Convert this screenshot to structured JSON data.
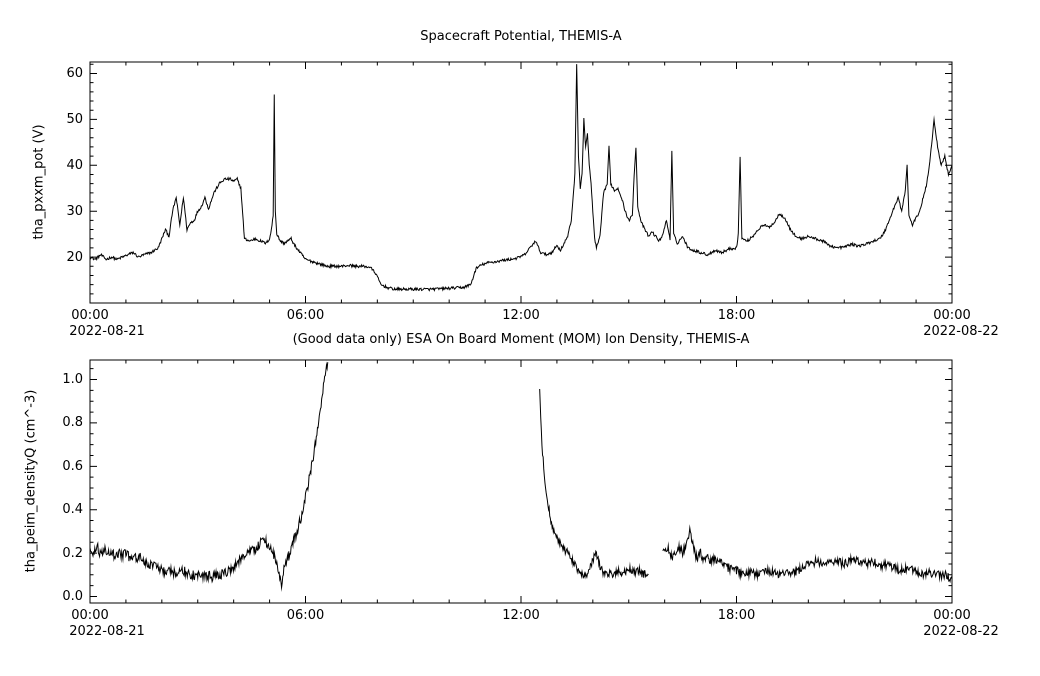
{
  "page": {
    "background": "#ffffff",
    "foreground": "#000000"
  },
  "chart_data": [
    {
      "type": "line",
      "panel": "spacecraft-potential",
      "title": "Spacecraft Potential, THEMIS-A",
      "ylabel": "tha_pxxm_pot (V)",
      "xlabel": "",
      "series_name": "tha_pxxm_pot",
      "line_color": "#000000",
      "x_units": "hours since 2022-08-21 00:00",
      "x_axis": {
        "range_hours": [
          0,
          24
        ],
        "tick_hours": [
          0,
          6,
          12,
          18,
          24
        ],
        "tick_labels": [
          "00:00",
          "06:00",
          "12:00",
          "18:00",
          "00:00"
        ],
        "minor_step_hours": 1,
        "date_left": "2022-08-21",
        "date_right": "2022-08-22"
      },
      "y_axis": {
        "range": [
          10,
          62.5
        ],
        "tick_values": [
          20,
          30,
          40,
          50,
          60
        ],
        "tick_labels": [
          "20",
          "30",
          "40",
          "50",
          "60"
        ],
        "minor_step": 2
      },
      "segments": [
        {
          "noise": 0.3,
          "x": [
            0,
            0.15,
            0.3,
            0.45,
            0.6,
            0.75,
            0.9,
            1.05,
            1.2,
            1.35,
            1.5,
            1.7,
            1.9,
            2,
            2.1,
            2.2,
            2.3,
            2.4,
            2.5,
            2.6,
            2.7,
            2.8,
            2.9,
            3,
            3.1,
            3.2,
            3.3,
            3.45,
            3.6,
            3.75,
            3.9,
            4,
            4.1,
            4.2,
            4.3,
            4.45,
            4.6,
            4.75,
            4.9,
            5,
            5.05,
            5.1,
            5.13,
            5.16,
            5.2,
            5.3,
            5.4,
            5.5,
            5.6,
            5.7,
            5.8,
            5.9,
            6,
            6.2,
            6.4,
            6.6,
            6.8,
            7,
            7.2,
            7.4,
            7.6,
            7.8,
            7.95,
            8.1,
            8.3,
            8.5,
            9,
            9.5,
            10,
            10.4,
            10.6,
            10.75,
            10.9,
            11.1,
            11.3,
            11.5,
            11.7,
            11.9,
            12.1,
            12.25,
            12.4,
            12.55,
            12.7,
            12.85,
            13,
            13.1,
            13.2,
            13.3,
            13.4,
            13.45,
            13.5,
            13.55,
            13.6,
            13.65,
            13.7,
            13.75,
            13.8,
            13.85,
            13.9,
            13.95,
            14,
            14.05,
            14.1,
            14.2,
            14.3,
            14.4,
            14.45,
            14.5,
            14.6,
            14.7,
            14.8,
            14.9,
            15,
            15.1,
            15.15,
            15.2,
            15.25,
            15.35,
            15.45,
            15.55,
            15.65,
            15.75,
            15.85,
            15.95,
            16.05,
            16.15,
            16.2,
            16.25,
            16.35,
            16.5,
            16.65,
            16.8,
            17,
            17.2,
            17.4,
            17.6,
            17.8,
            18,
            18.05,
            18.1,
            18.15,
            18.3,
            18.45,
            18.6,
            18.75,
            18.9,
            19.05,
            19.2,
            19.35,
            19.5,
            19.65,
            19.8,
            20,
            20.2,
            20.4,
            20.6,
            20.8,
            21,
            21.2,
            21.4,
            21.6,
            21.8,
            22,
            22.15,
            22.3,
            22.4,
            22.5,
            22.6,
            22.7,
            22.75,
            22.8,
            22.9,
            23,
            23.1,
            23.2,
            23.3,
            23.4,
            23.5,
            23.6,
            23.7,
            23.8,
            23.9,
            24
          ],
          "y": [
            20,
            19.5,
            20.5,
            19.5,
            20,
            19.5,
            20,
            20.5,
            21,
            20,
            20.5,
            21,
            22,
            24,
            26,
            24.5,
            30,
            33,
            27,
            33,
            26,
            27.5,
            28,
            30,
            31,
            33,
            30.5,
            34,
            36,
            37,
            37,
            36.5,
            37,
            35,
            24,
            23.5,
            24,
            23.5,
            23,
            24,
            26,
            29,
            55.5,
            30,
            25,
            23.5,
            23,
            23.5,
            24,
            22.5,
            21.5,
            20.5,
            19.5,
            19,
            18.5,
            18,
            18,
            18,
            18.2,
            18,
            18,
            17.8,
            16.5,
            14,
            13.3,
            13,
            13,
            13,
            13.2,
            13.4,
            14,
            17.5,
            18.3,
            18.8,
            19,
            19.3,
            19.5,
            19.8,
            20.5,
            22,
            23.5,
            21,
            20.5,
            21,
            22.5,
            21.5,
            23,
            24.5,
            28,
            33,
            38,
            62,
            42,
            35,
            38,
            50,
            44,
            47,
            40,
            36,
            30,
            24,
            22,
            24.5,
            34,
            36,
            44,
            36,
            34.5,
            35,
            33,
            30,
            28,
            29,
            38,
            44,
            31,
            27.5,
            26,
            24.5,
            25.5,
            24.5,
            23.5,
            25,
            28,
            24,
            43,
            25,
            23,
            24.5,
            22,
            21.5,
            21,
            20.5,
            21.5,
            21,
            21.8,
            22,
            25,
            42,
            24,
            23.5,
            24.5,
            26,
            27,
            26.5,
            27.5,
            29.5,
            28.5,
            26,
            24.5,
            24,
            24.5,
            24,
            23.5,
            22.5,
            22,
            22.2,
            22.8,
            22.4,
            22.8,
            23.5,
            24,
            26,
            29,
            31,
            33,
            30,
            34.5,
            40,
            29,
            27,
            28.5,
            30,
            33,
            36,
            42,
            50,
            44,
            40,
            42,
            38,
            40
          ]
        }
      ]
    },
    {
      "type": "line",
      "panel": "ion-density",
      "title": "(Good data only) ESA On Board Moment (MOM) Ion Density, THEMIS-A",
      "ylabel": "tha_peim_densityQ (cm^-3)",
      "xlabel": "",
      "series_name": "tha_peim_densityQ",
      "line_color": "#000000",
      "x_units": "hours since 2022-08-21 00:00",
      "x_axis": {
        "range_hours": [
          0,
          24
        ],
        "tick_hours": [
          0,
          6,
          12,
          18,
          24
        ],
        "tick_labels": [
          "00:00",
          "06:00",
          "12:00",
          "18:00",
          "00:00"
        ],
        "minor_step_hours": 1,
        "date_left": "2022-08-21",
        "date_right": "2022-08-22"
      },
      "y_axis": {
        "range": [
          -0.03,
          1.09
        ],
        "tick_values": [
          0,
          0.2,
          0.4,
          0.6,
          0.8,
          1.0
        ],
        "tick_labels": [
          "0.0",
          "0.2",
          "0.4",
          "0.6",
          "0.8",
          "1.0"
        ],
        "minor_step": 0.05
      },
      "segments": [
        {
          "noise": 0.022,
          "x": [
            0,
            0.1,
            0.2,
            0.3,
            0.4,
            0.5,
            0.6,
            0.7,
            0.8,
            0.9,
            1,
            1.1,
            1.2,
            1.3,
            1.4,
            1.5,
            1.6,
            1.8,
            2,
            2.2,
            2.4,
            2.6,
            2.8,
            3,
            3.2,
            3.4,
            3.6,
            3.8,
            4,
            4.2,
            4.4,
            4.5,
            4.6,
            4.7,
            4.8,
            4.9,
            5,
            5.1,
            5.2,
            5.3,
            5.35,
            5.4,
            5.5,
            5.6,
            5.7,
            5.8,
            5.9,
            6,
            6.1,
            6.2,
            6.3,
            6.4,
            6.5,
            6.55,
            6.62
          ],
          "y": [
            0.22,
            0.2,
            0.23,
            0.19,
            0.22,
            0.2,
            0.21,
            0.18,
            0.2,
            0.19,
            0.2,
            0.18,
            0.19,
            0.17,
            0.18,
            0.16,
            0.15,
            0.14,
            0.12,
            0.12,
            0.11,
            0.12,
            0.1,
            0.1,
            0.1,
            0.09,
            0.1,
            0.11,
            0.13,
            0.18,
            0.2,
            0.22,
            0.21,
            0.24,
            0.26,
            0.25,
            0.22,
            0.2,
            0.15,
            0.08,
            0.05,
            0.12,
            0.18,
            0.22,
            0.27,
            0.32,
            0.38,
            0.46,
            0.54,
            0.63,
            0.73,
            0.84,
            0.98,
            1.03,
            1.08
          ]
        },
        {
          "noise": 0.018,
          "x": [
            12.52,
            12.55,
            12.6,
            12.65,
            12.7,
            12.8,
            12.9,
            13,
            13.1,
            13.2,
            13.3,
            13.4,
            13.5,
            13.6,
            13.7,
            13.8,
            13.9,
            14,
            14.1,
            14.2,
            14.3,
            14.4,
            14.5,
            14.6,
            14.7,
            14.8,
            14.9,
            15,
            15.1,
            15.2,
            15.3,
            15.4,
            15.5,
            15.55
          ],
          "y": [
            0.95,
            0.82,
            0.66,
            0.56,
            0.48,
            0.38,
            0.3,
            0.27,
            0.24,
            0.22,
            0.2,
            0.17,
            0.15,
            0.12,
            0.1,
            0.1,
            0.12,
            0.17,
            0.2,
            0.14,
            0.1,
            0.1,
            0.11,
            0.1,
            0.12,
            0.1,
            0.11,
            0.13,
            0.12,
            0.11,
            0.12,
            0.1,
            0.11,
            0.1
          ]
        },
        {
          "noise": 0.02,
          "x": [
            15.95,
            16.1,
            16.2,
            16.3,
            16.4,
            16.5,
            16.6,
            16.7,
            16.75,
            16.8,
            16.9,
            17,
            17.1,
            17.2,
            17.3,
            17.4,
            17.5,
            17.6,
            17.7,
            17.8,
            17.9,
            18,
            18.2,
            18.4,
            18.6,
            18.8,
            19,
            19.2,
            19.4,
            19.6,
            19.8,
            20,
            20.2,
            20.4,
            20.6,
            20.8,
            21,
            21.2,
            21.4,
            21.6,
            21.8,
            22,
            22.2,
            22.4,
            22.6,
            22.8,
            23,
            23.2,
            23.4,
            23.6,
            23.8,
            24
          ],
          "y": [
            0.2,
            0.22,
            0.18,
            0.2,
            0.23,
            0.2,
            0.25,
            0.3,
            0.27,
            0.22,
            0.18,
            0.2,
            0.17,
            0.18,
            0.16,
            0.17,
            0.15,
            0.16,
            0.14,
            0.13,
            0.12,
            0.12,
            0.1,
            0.11,
            0.1,
            0.12,
            0.11,
            0.1,
            0.12,
            0.11,
            0.13,
            0.15,
            0.16,
            0.15,
            0.17,
            0.16,
            0.15,
            0.17,
            0.16,
            0.15,
            0.16,
            0.14,
            0.15,
            0.13,
            0.12,
            0.13,
            0.12,
            0.1,
            0.11,
            0.1,
            0.1,
            0.08
          ]
        }
      ]
    }
  ]
}
